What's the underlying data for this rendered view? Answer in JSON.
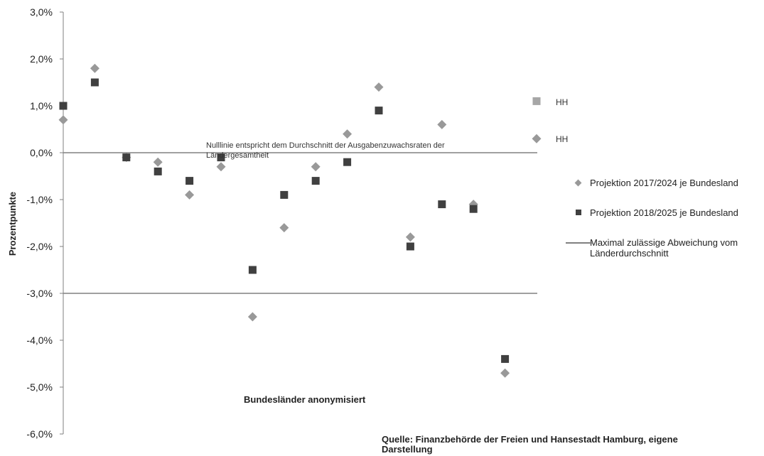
{
  "chart_data": {
    "type": "scatter",
    "ylabel": "Prozentpunkte",
    "xlabel": "Bundesländer anonymisiert",
    "ylim": [
      -6,
      3
    ],
    "yticks": [
      "3,0%",
      "2,0%",
      "1,0%",
      "0,0%",
      "-1,0%",
      "-2,0%",
      "-3,0%",
      "-4,0%",
      "-5,0%",
      "-6,0%"
    ],
    "ytick_values": [
      3,
      2,
      1,
      0,
      -1,
      -2,
      -3,
      -4,
      -5,
      -6
    ],
    "x_positions": [
      1,
      2,
      3,
      4,
      5,
      6,
      7,
      8,
      9,
      10,
      11,
      12,
      13,
      14,
      15,
      16
    ],
    "series": [
      {
        "name": "Projektion 2017/2024 je Bundesland",
        "marker": "diamond",
        "color": "#999999",
        "values": [
          0.7,
          1.8,
          -0.1,
          -0.2,
          -0.9,
          -0.3,
          -3.5,
          -1.6,
          -0.3,
          0.4,
          1.4,
          -1.8,
          0.6,
          -1.1,
          -4.7,
          0.3
        ]
      },
      {
        "name": "Projektion 2018/2025 je Bundesland",
        "marker": "square",
        "color": "#404040",
        "values": [
          1.0,
          1.5,
          -0.1,
          -0.4,
          -0.6,
          -0.1,
          -2.5,
          -0.9,
          -0.6,
          -0.2,
          0.9,
          -2.0,
          -1.1,
          -1.2,
          -4.4,
          1.1
        ]
      }
    ],
    "highlight": {
      "index": 16,
      "label": "HH",
      "square_color": "#a6a6a6",
      "diamond_color": "#999999"
    },
    "reference_lines": [
      {
        "value": 0,
        "color": "#808080",
        "annotation": "Nulllinie  entspricht dem Durchschnitt der Ausgabenzuwachsraten der Ländergesamtheit"
      },
      {
        "value": -3,
        "color": "#808080",
        "name": "Maximal zulässige Abweichung vom Länderdurchschnitt"
      }
    ],
    "legend_position": "right",
    "grid": false
  },
  "annotations": {
    "nullline_line1": "Nulllinie  entspricht dem Durchschnitt der Ausgabenzuwachsraten der",
    "nullline_line2": "Ländergesamtheit",
    "hh_label": "HH"
  },
  "legend": [
    {
      "label": "Projektion 2017/2024 je Bundesland"
    },
    {
      "label": "Projektion 2018/2025 je Bundesland"
    },
    {
      "label": "Maximal zulässige Abweichung vom Länderdurchschnitt"
    }
  ],
  "source": "Quelle: Finanzbehörde der Freien und Hansestadt Hamburg, eigene Darstellung"
}
